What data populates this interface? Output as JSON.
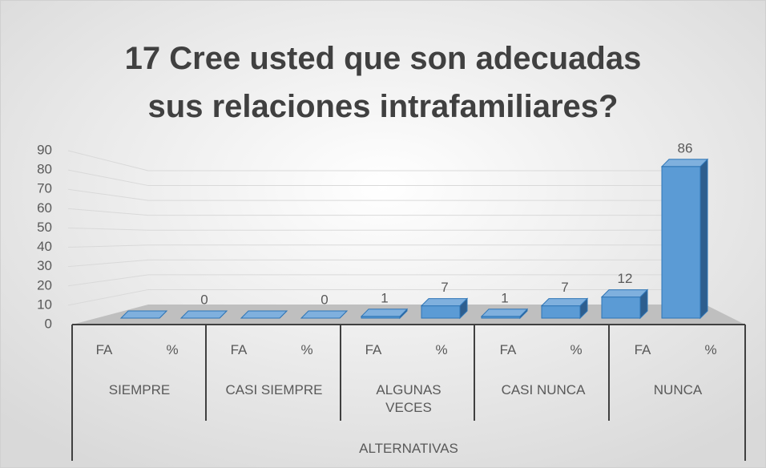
{
  "chart_data": {
    "type": "bar3d",
    "title": "17 Cree usted que son adecuadas sus relaciones intrafamiliares?",
    "categories": [
      "FA",
      "%",
      "FA",
      "%",
      "FA",
      "%",
      "FA",
      "%",
      "FA",
      "%"
    ],
    "category_groups": [
      "SIEMPRE",
      "CASI SIEMPRE",
      "ALGUNAS VECES",
      "CASI NUNCA",
      "NUNCA"
    ],
    "x_label": "ALTERNATIVAS",
    "values": [
      0,
      0,
      0,
      0,
      1,
      7,
      1,
      7,
      12,
      86
    ],
    "value_labels": [
      null,
      "0",
      null,
      "0",
      "1",
      "7",
      "1",
      "7",
      "12",
      "86"
    ],
    "color": "#5b9bd5",
    "ylim": [
      0,
      90
    ],
    "yticks": [
      0,
      10,
      20,
      30,
      40,
      50,
      60,
      70,
      80,
      90
    ],
    "grid": true
  }
}
